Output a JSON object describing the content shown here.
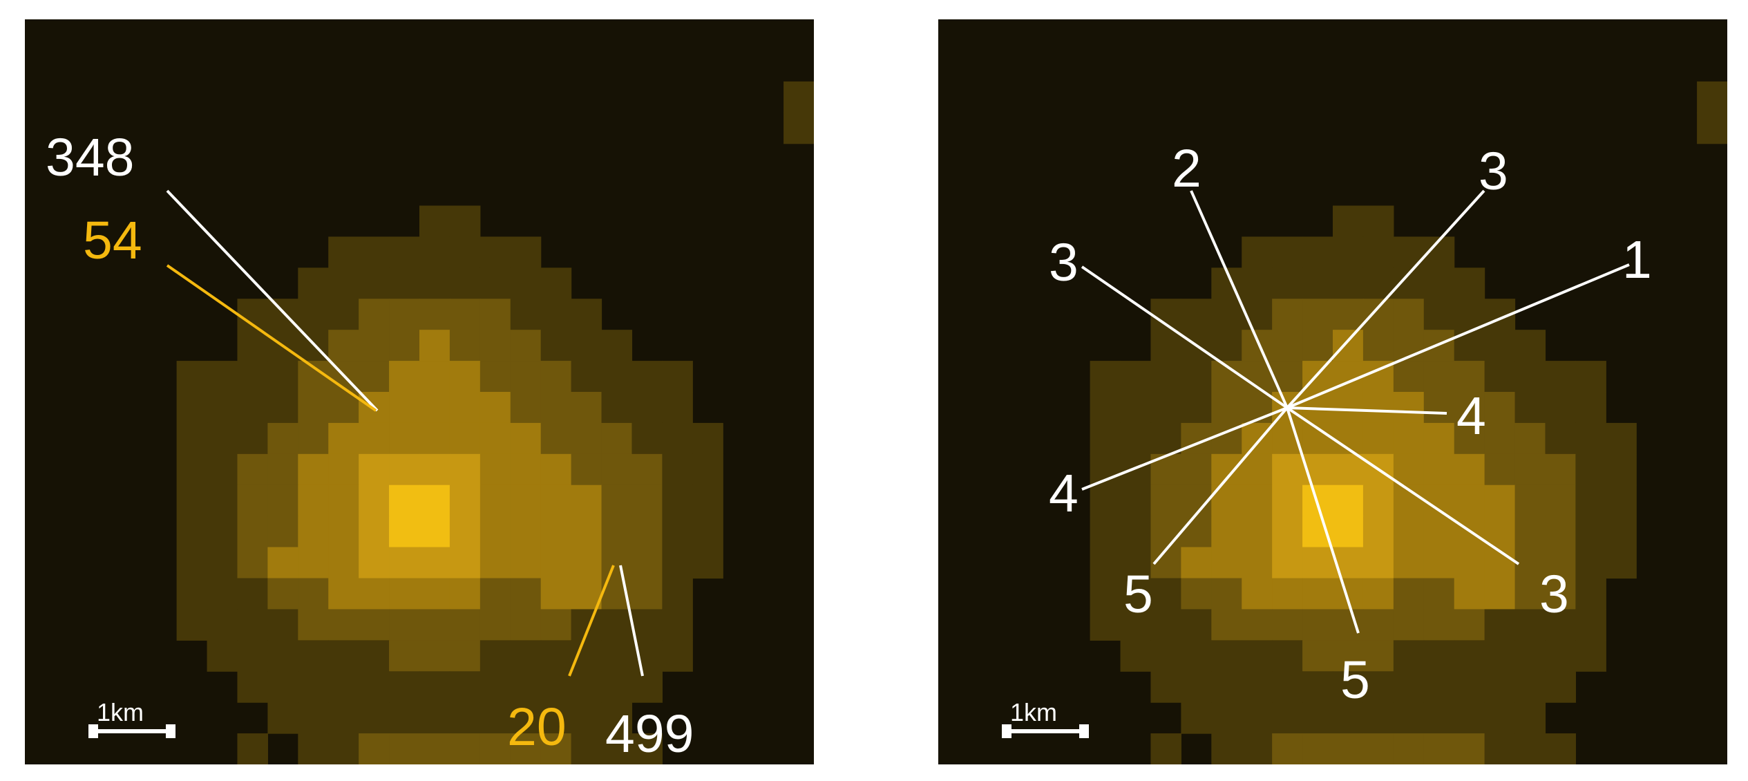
{
  "colors": {
    "background": "#161205",
    "level_1": "#463808",
    "level_2": "#6f570c",
    "level_3": "#a17b0d",
    "level_4": "#c79812",
    "level_5": "#f1be12",
    "white_label": "#ffffff",
    "yellow_label": "#f5b90f"
  },
  "heat_grid": [
    "000000000000000000000000000",
    "000000000000000000000000000",
    "00000000000000000000000001",
    "00000000000000000000000001",
    "000000000000000000000000000",
    "000000000000000000000000000",
    "00000000000001100000000000",
    "00000000001111111000000000",
    "00000000011111111100000000",
    "00000001111222221110000000",
    "00000001112223222111000000",
    "00000111122233322211110000",
    "00000111122333332221110000",
    "00000111223333333222111000",
    "00000112233444433322211000",
    "00000112233455433332211000",
    "00000112233455433332211000",
    "00000112333444433332211000",
    "00000111223333322332210000",
    "00000111122222222211110000",
    "00000011111122211111110000",
    "00000001111111111111100000",
    "00000000111111111111000000",
    "00000001011222222211100000",
    "00000001111222222211110000"
  ],
  "scale_bar": {
    "label": "1km"
  },
  "left_panel": {
    "labels": [
      {
        "text": "348",
        "color": "white"
      },
      {
        "text": "54",
        "color": "yellow"
      },
      {
        "text": "20",
        "color": "yellow"
      },
      {
        "text": "499",
        "color": "white"
      }
    ]
  },
  "right_panel": {
    "labels": [
      {
        "text": "2"
      },
      {
        "text": "3"
      },
      {
        "text": "3"
      },
      {
        "text": "1"
      },
      {
        "text": "4"
      },
      {
        "text": "4"
      },
      {
        "text": "5"
      },
      {
        "text": "3"
      },
      {
        "text": "5"
      }
    ]
  }
}
